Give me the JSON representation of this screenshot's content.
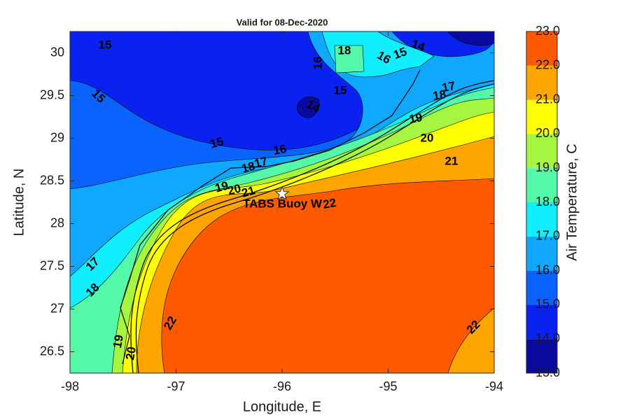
{
  "chart_data": {
    "type": "contour",
    "title": "Valid for 08-Dec-2020",
    "xlabel": "Longitude, E",
    "ylabel": "Latitude, N",
    "xlim": [
      -98,
      -94
    ],
    "ylim": [
      26.25,
      30.25
    ],
    "xticks": [
      -98,
      -97,
      -96,
      -95,
      -94
    ],
    "yticks": [
      26.5,
      27,
      27.5,
      28,
      28.5,
      29,
      29.5,
      30
    ],
    "colorbar": {
      "label": "Air Temperature, C",
      "levels": [
        13,
        14,
        15,
        16,
        17,
        18,
        19,
        20,
        21,
        22,
        23
      ],
      "ticks": [
        {
          "value": 13,
          "label": "13.0"
        },
        {
          "value": 14,
          "label": "14.0"
        },
        {
          "value": 15,
          "label": "15.0"
        },
        {
          "value": 16,
          "label": "16.0"
        },
        {
          "value": 17,
          "label": "17.0"
        },
        {
          "value": 18,
          "label": "18.0"
        },
        {
          "value": 19,
          "label": "19.0"
        },
        {
          "value": 20,
          "label": "20.0"
        },
        {
          "value": 21,
          "label": "21.0"
        },
        {
          "value": 22,
          "label": "22.0"
        },
        {
          "value": 23,
          "label": "23.0"
        }
      ],
      "colors": [
        "#0a0a9e",
        "#0a22f0",
        "#0a62ff",
        "#10a8ff",
        "#10eeff",
        "#55f7a8",
        "#a6f540",
        "#ffff00",
        "#ffa500",
        "#ff5a00"
      ]
    },
    "contour_labels": [
      15,
      15,
      15,
      16,
      16,
      18,
      14,
      15,
      16,
      14,
      15,
      17,
      18,
      19,
      20,
      21,
      22,
      22,
      22,
      17,
      18,
      19,
      20,
      17,
      18,
      19,
      20,
      21
    ],
    "annotation": {
      "text": "TABS Buoy W",
      "x": -96,
      "y": 28.35
    }
  }
}
